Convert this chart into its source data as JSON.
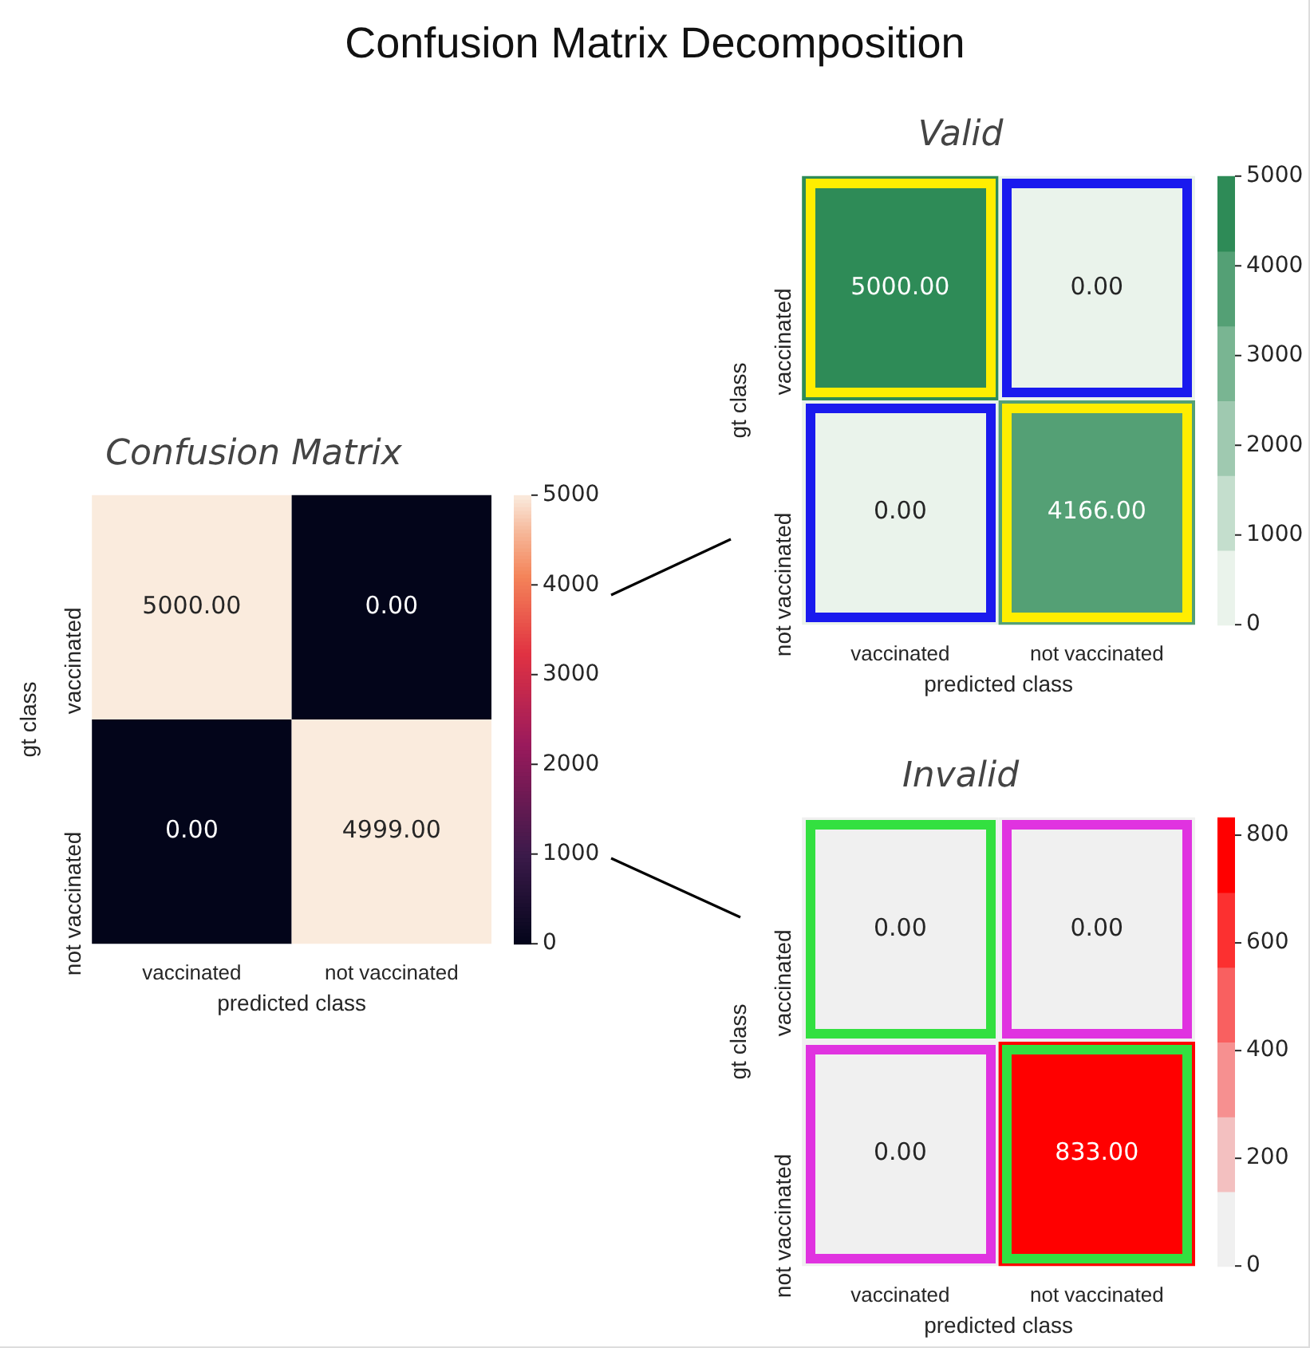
{
  "chart_data": [
    {
      "type": "heatmap",
      "title": "Confusion Matrix",
      "xlabel": "predicted class",
      "ylabel": "gt class",
      "categories": [
        "vaccinated",
        "not vaccinated"
      ],
      "y_categories": [
        "vaccinated",
        "not vaccinated"
      ],
      "cells": [
        [
          5000,
          0
        ],
        [
          0,
          4999
        ]
      ],
      "cell_labels": [
        [
          "5000.00",
          "0.00"
        ],
        [
          "0.00",
          "4999.00"
        ]
      ],
      "clim": [
        0,
        5000
      ],
      "cticks": [
        0,
        1000,
        2000,
        3000,
        4000,
        5000
      ],
      "annotations": [
        "Confusion Matrix Decomposition"
      ]
    },
    {
      "type": "heatmap",
      "title": "Valid",
      "xlabel": "predicted class",
      "ylabel": "gt class",
      "categories": [
        "vaccinated",
        "not vaccinated"
      ],
      "y_categories": [
        "vaccinated",
        "not vaccinated"
      ],
      "cells": [
        [
          5000,
          0
        ],
        [
          0,
          4166
        ]
      ],
      "cell_labels": [
        [
          "5000.00",
          "0.00"
        ],
        [
          "0.00",
          "4166.00"
        ]
      ],
      "clim": [
        0,
        5000
      ],
      "cticks": [
        0,
        1000,
        2000,
        3000,
        4000,
        5000
      ]
    },
    {
      "type": "heatmap",
      "title": "Invalid",
      "xlabel": "predicted class",
      "ylabel": "gt class",
      "categories": [
        "vaccinated",
        "not vaccinated"
      ],
      "y_categories": [
        "vaccinated",
        "not vaccinated"
      ],
      "cells": [
        [
          0,
          0
        ],
        [
          0,
          833
        ]
      ],
      "cell_labels": [
        [
          "0.00",
          "0.00"
        ],
        [
          "0.00",
          "833.00"
        ]
      ],
      "clim": [
        0,
        833
      ],
      "cticks": [
        0,
        200,
        400,
        600,
        800
      ]
    }
  ]
}
